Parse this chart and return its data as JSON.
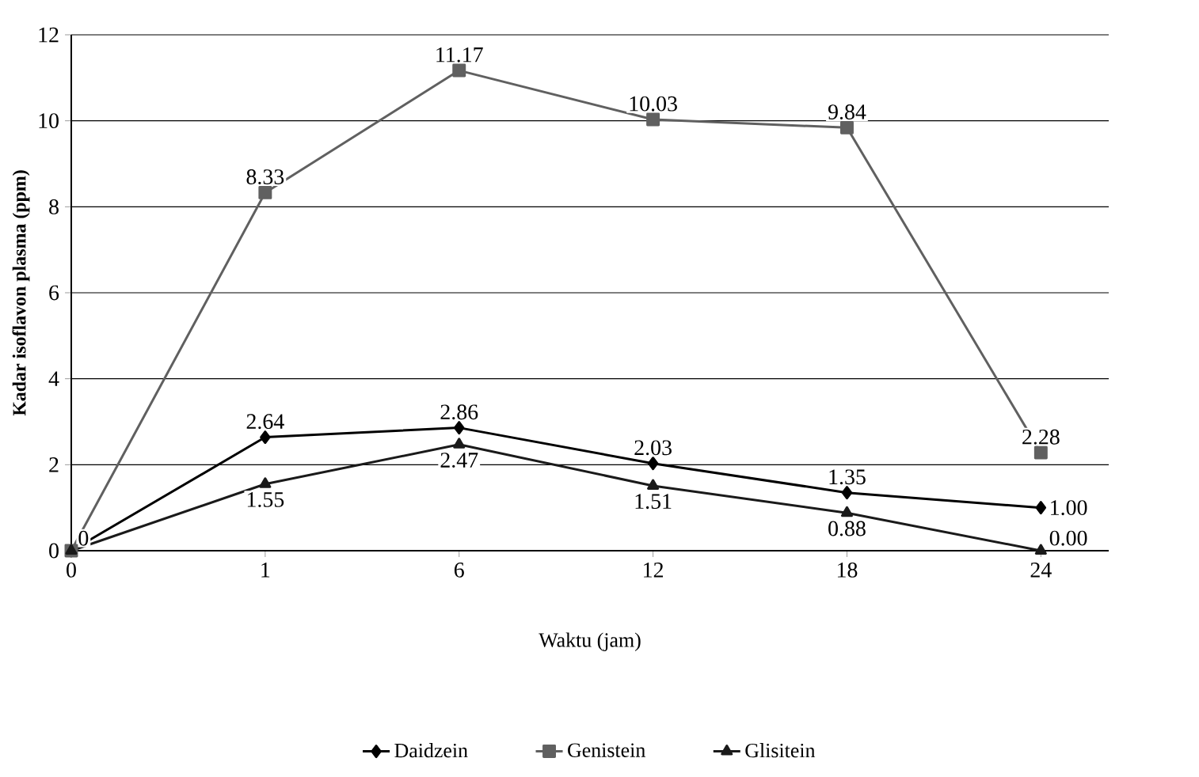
{
  "chart_data": {
    "type": "line",
    "xlabel": "Waktu (jam)",
    "ylabel": "Kadar isoflavon plasma (ppm)",
    "categories": [
      "0",
      "1",
      "6",
      "12",
      "18",
      "24"
    ],
    "series": [
      {
        "name": "Daidzein",
        "color": "#000000",
        "marker": "diamond",
        "values": [
          0,
          2.64,
          2.86,
          2.03,
          1.35,
          1.0
        ],
        "value_labels": [
          "0",
          "2.64",
          "2.86",
          "2.03",
          "1.35",
          "1.00"
        ]
      },
      {
        "name": "Genistein",
        "color": "#606060",
        "marker": "square",
        "values": [
          0,
          8.33,
          11.17,
          10.03,
          9.84,
          2.28
        ],
        "value_labels": [
          null,
          "8.33",
          "11.17",
          "10.03",
          "9.84",
          "2.28"
        ]
      },
      {
        "name": "Glisitein",
        "color": "#1a1a1a",
        "marker": "triangle",
        "values": [
          0,
          1.55,
          2.47,
          1.51,
          0.88,
          0.0
        ],
        "value_labels": [
          null,
          "1.55",
          "2.47",
          "1.51",
          "0.88",
          "0.00"
        ]
      }
    ],
    "ylim": [
      0,
      12
    ],
    "yticks": [
      0,
      2,
      4,
      6,
      8,
      10,
      12
    ],
    "grid": "y",
    "legend": "bottom",
    "line_style": "solid"
  }
}
